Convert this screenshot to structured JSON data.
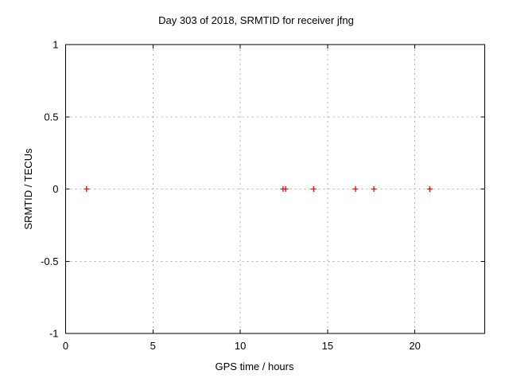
{
  "chart_data": {
    "type": "scatter",
    "title": "Day 303 of 2018, SRMTID for receiver jfng",
    "xlabel": "GPS time / hours",
    "ylabel": "SRMTID / TECUs",
    "xlim": [
      0,
      24
    ],
    "ylim": [
      -1,
      1
    ],
    "xticks": [
      0,
      5,
      10,
      15,
      20
    ],
    "xtick_labels": [
      "0",
      "5",
      "10",
      "15",
      "20"
    ],
    "yticks": [
      -1,
      -0.5,
      0,
      0.5,
      1
    ],
    "ytick_labels": [
      "-1",
      "-0.5",
      "0",
      "0.5",
      "1"
    ],
    "grid": true,
    "legend_position": "none",
    "series": [
      {
        "name": "SRMTID",
        "marker": "plus",
        "color": "#ff0000",
        "points": [
          {
            "x": 1.2,
            "y": 0.0
          },
          {
            "x": 12.45,
            "y": 0.0
          },
          {
            "x": 12.6,
            "y": 0.0
          },
          {
            "x": 14.2,
            "y": 0.0
          },
          {
            "x": 16.6,
            "y": 0.0
          },
          {
            "x": 17.65,
            "y": 0.0
          },
          {
            "x": 20.85,
            "y": 0.0
          }
        ]
      }
    ],
    "colors": {
      "background": "#ffffff",
      "border": "#000000",
      "grid": "#b0b0b0",
      "text": "#000000",
      "marker": "#ff0000"
    }
  }
}
